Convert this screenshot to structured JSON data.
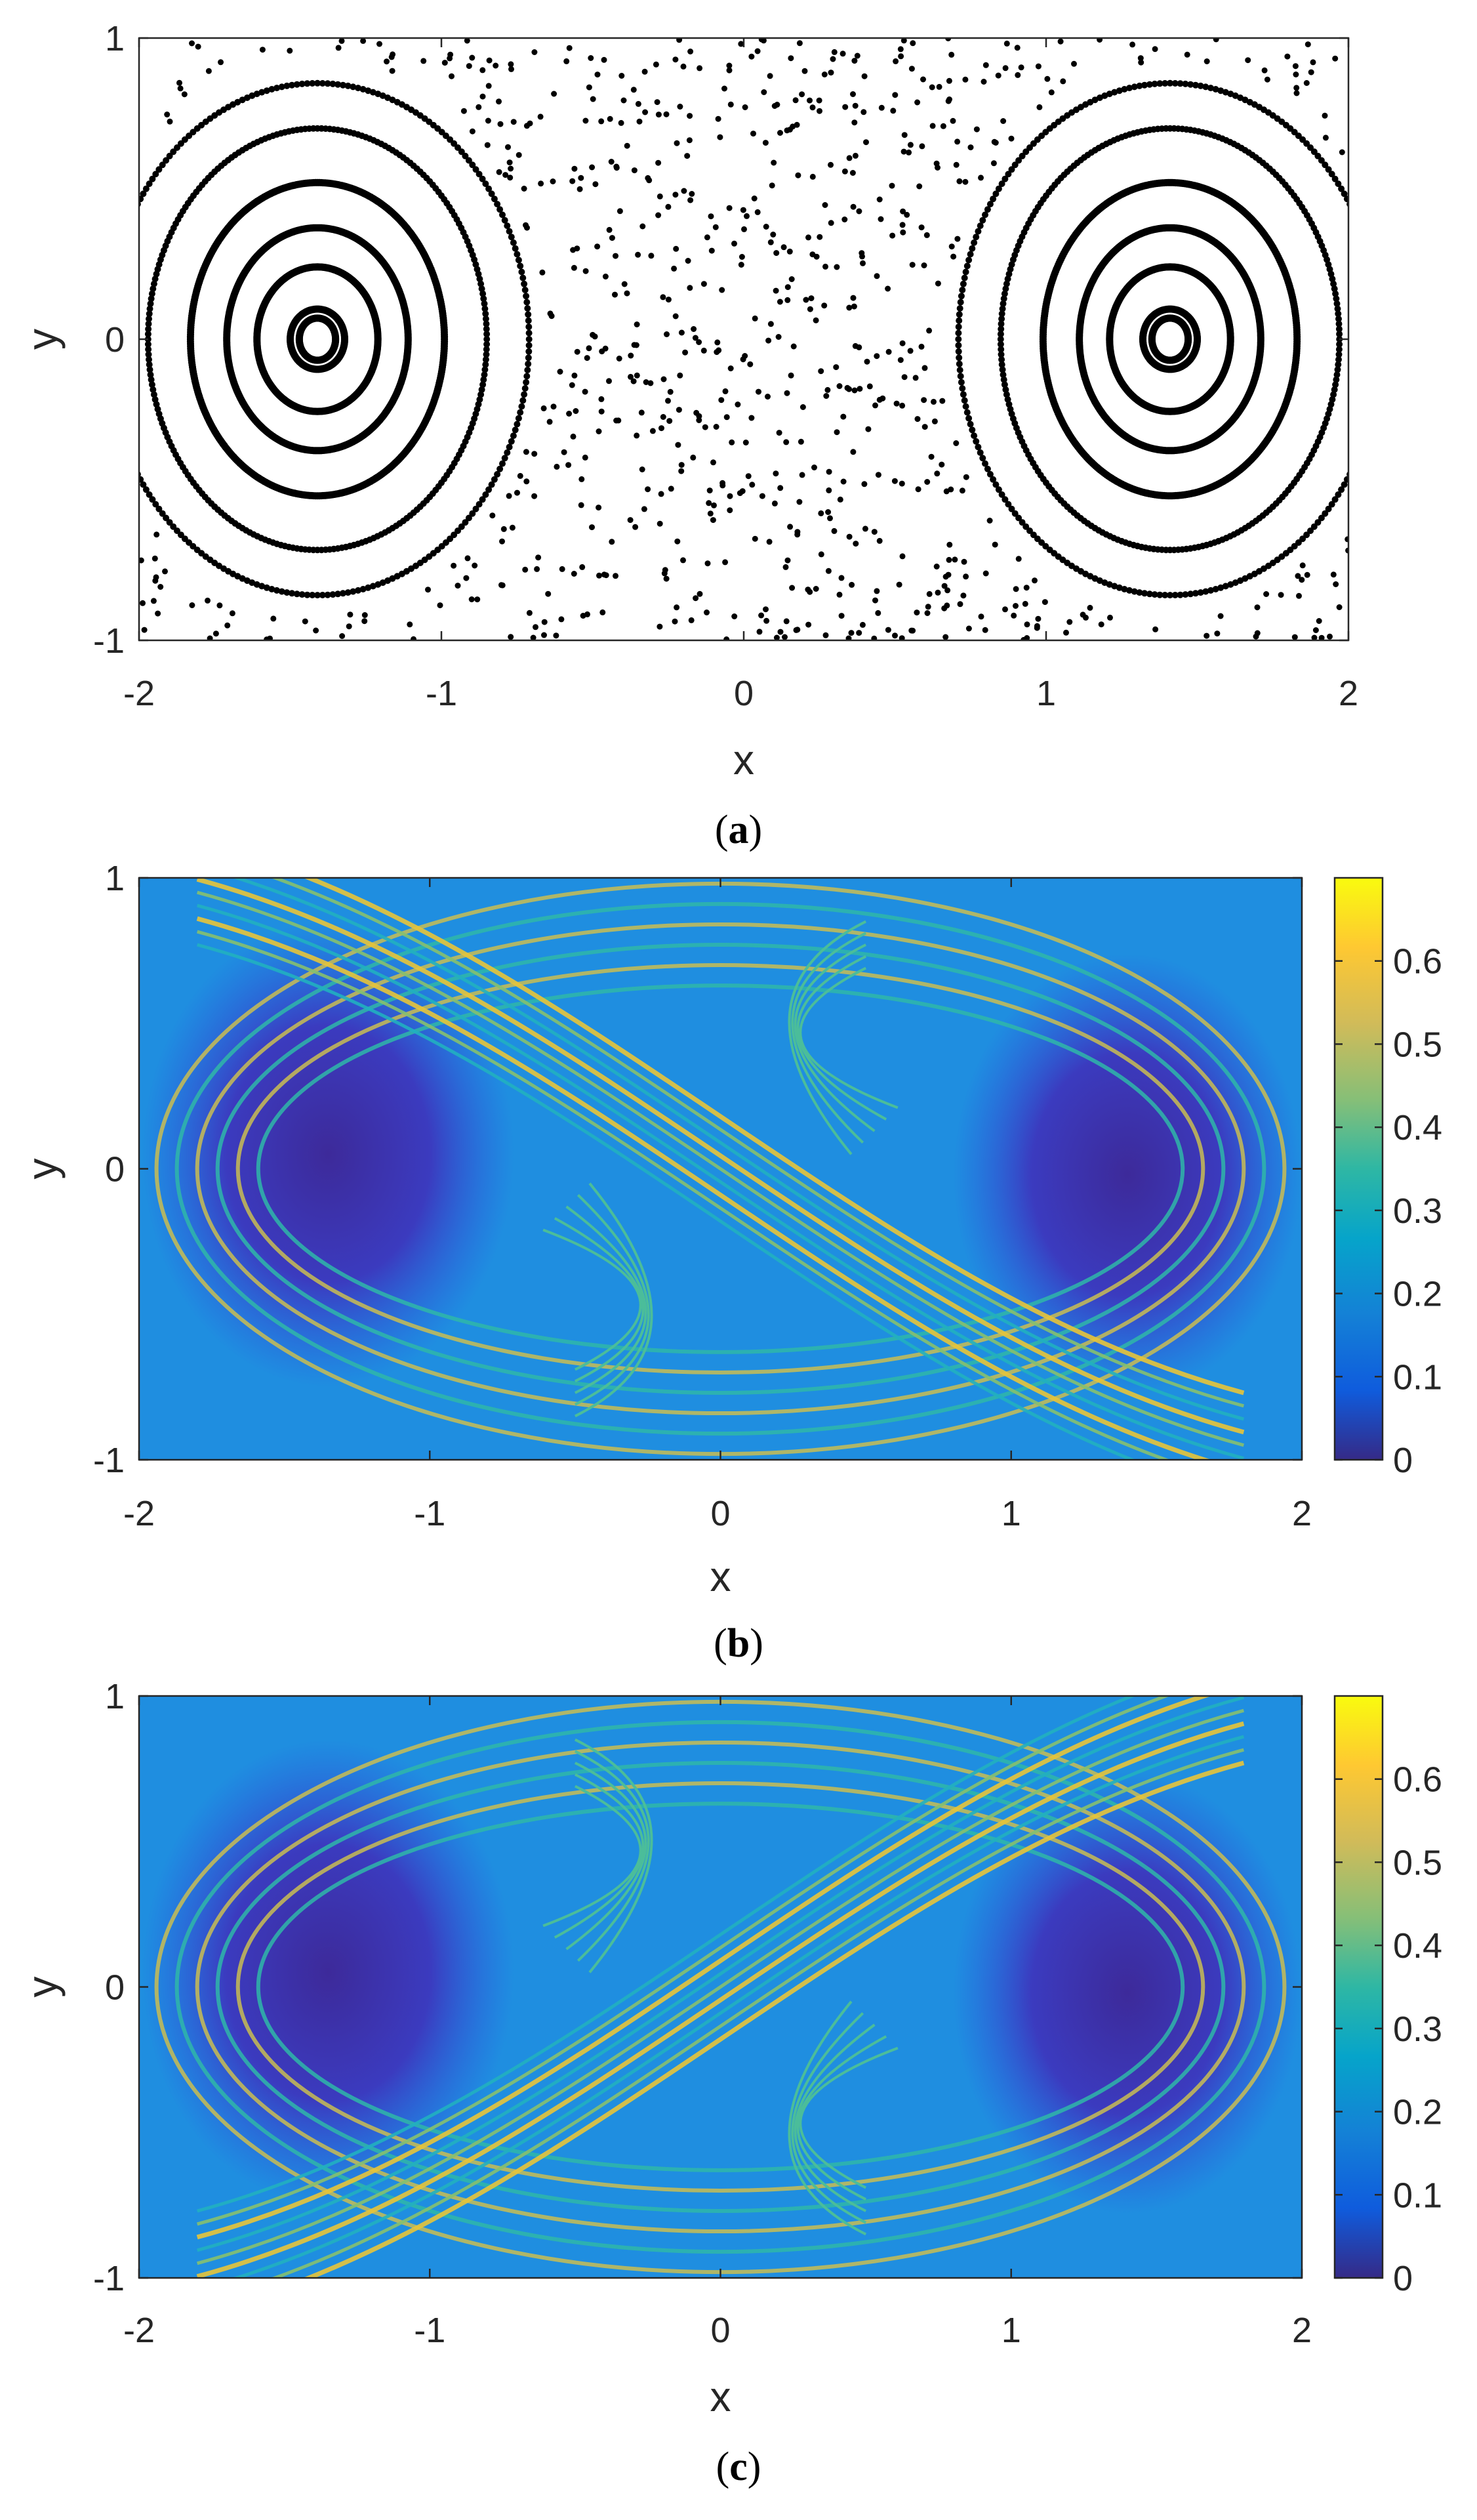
{
  "chart_data": [
    {
      "type": "scatter",
      "panel": "(a)",
      "caption": {
        "open": "(",
        "letter": "a",
        "close": ")"
      },
      "xlabel": "x",
      "ylabel": "y",
      "xlim": [
        -2,
        2
      ],
      "ylim": [
        -1,
        1
      ],
      "xticks": [
        "-2",
        "-1",
        "0",
        "1",
        "2"
      ],
      "yticks": [
        "-1",
        "0",
        "1"
      ],
      "grid": false,
      "marker_color": "#000000",
      "description_values": {
        "islands": [
          {
            "center_x": -1.41,
            "center_y": 0.0
          },
          {
            "center_x": 1.41,
            "center_y": 0.0
          }
        ]
      }
    },
    {
      "type": "heatmap",
      "panel": "(b)",
      "caption": {
        "open": "(",
        "letter": "b",
        "close": ")"
      },
      "xlabel": "x",
      "ylabel": "y",
      "xlim": [
        -2,
        2
      ],
      "ylim": [
        -1,
        1
      ],
      "xticks": [
        "-2",
        "-1",
        "0",
        "1",
        "2"
      ],
      "yticks": [
        "-1",
        "0",
        "1"
      ],
      "colorbar": {
        "min": 0,
        "max": 0.7,
        "ticks": [
          "0",
          "0.1",
          "0.2",
          "0.3",
          "0.4",
          "0.5",
          "0.6"
        ],
        "colormap": "parula"
      },
      "ridge_orientation": "descending"
    },
    {
      "type": "heatmap",
      "panel": "(c)",
      "caption": {
        "open": "(",
        "letter": "c",
        "close": ")"
      },
      "xlabel": "x",
      "ylabel": "y",
      "xlim": [
        -2,
        2
      ],
      "ylim": [
        -1,
        1
      ],
      "xticks": [
        "-2",
        "-1",
        "0",
        "1",
        "2"
      ],
      "yticks": [
        "-1",
        "0",
        "1"
      ],
      "colorbar": {
        "min": 0,
        "max": 0.7,
        "ticks": [
          "0",
          "0.1",
          "0.2",
          "0.3",
          "0.4",
          "0.5",
          "0.6"
        ],
        "colormap": "parula"
      },
      "ridge_orientation": "ascending"
    }
  ]
}
